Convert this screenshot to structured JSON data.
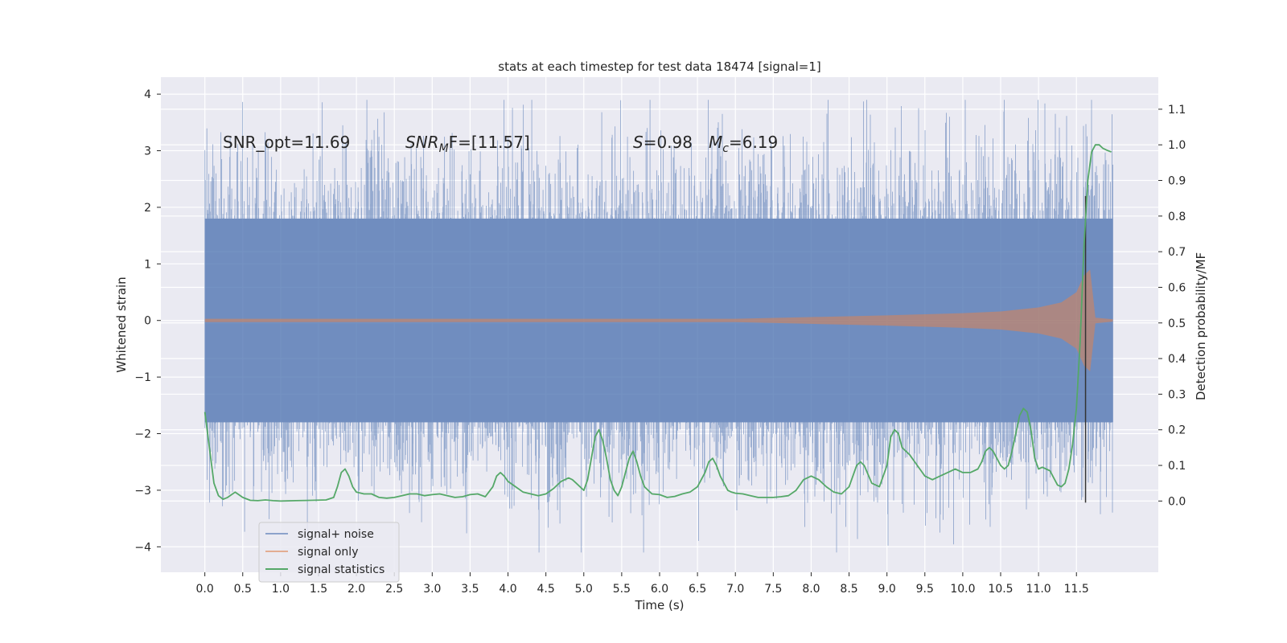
{
  "chart_data": {
    "type": "line",
    "title": "stats at each timestep for test data 18474 [signal=1]",
    "xlabel": "Time (s)",
    "ylabel": "Whitened strain",
    "ylabel_right": "Detection probability/MF",
    "xlim": [
      -0.58,
      12.58
    ],
    "ylim": [
      -4.45,
      4.3
    ],
    "ylim_right": [
      -0.2,
      1.19
    ],
    "x_ticks": [
      "0.0",
      "0.5",
      "1.0",
      "1.5",
      "2.0",
      "2.5",
      "3.0",
      "3.5",
      "4.0",
      "4.5",
      "5.0",
      "5.5",
      "6.0",
      "6.5",
      "7.0",
      "7.5",
      "8.0",
      "8.5",
      "9.0",
      "9.5",
      "10.0",
      "10.5",
      "11.0",
      "11.5"
    ],
    "y_ticks_left": [
      "−4",
      "−3",
      "−2",
      "−1",
      "0",
      "1",
      "2",
      "3",
      "4"
    ],
    "y_ticks_right": [
      "0.0",
      "0.1",
      "0.2",
      "0.3",
      "0.4",
      "0.5",
      "0.6",
      "0.7",
      "0.8",
      "0.9",
      "1.0",
      "1.1"
    ],
    "grid": true,
    "legend_position": "lower-left",
    "annotations": [
      {
        "id": "snr_opt",
        "text": "SNR_opt=11.69"
      },
      {
        "id": "snr_mf",
        "text": "SNR_MF=[11.57]",
        "base": "SNR",
        "sub": "M",
        "suffix": "F=[11.57]"
      },
      {
        "id": "s_mc",
        "text": "S=0.98   M_c=6.19",
        "s_label": "S",
        "s_value": "=0.98",
        "mc_base": "M",
        "mc_sub": "c",
        "mc_value": "=6.19"
      }
    ],
    "series": [
      {
        "name": "signal+ noise",
        "color": "#4c72b0",
        "axis": "left",
        "kind": "noise-band",
        "x_range": [
          0,
          11.98
        ],
        "typical_range": [
          -1.8,
          1.8
        ],
        "extremes_range": [
          -4.1,
          3.9
        ]
      },
      {
        "name": "signal only",
        "color": "#dd8452",
        "axis": "left",
        "kind": "chirp-envelope",
        "x": [
          0,
          7.0,
          8.0,
          9.0,
          10.0,
          10.5,
          11.0,
          11.3,
          11.5,
          11.6,
          11.68,
          11.75,
          11.98
        ],
        "amplitude": [
          0.03,
          0.03,
          0.06,
          0.09,
          0.13,
          0.16,
          0.23,
          0.32,
          0.5,
          0.8,
          0.9,
          0.05,
          0.02
        ]
      },
      {
        "name": "signal statistics",
        "color": "#55a868",
        "axis": "right",
        "x": [
          0.0,
          0.06,
          0.12,
          0.18,
          0.24,
          0.3,
          0.4,
          0.5,
          0.6,
          0.7,
          0.8,
          0.9,
          1.0,
          1.2,
          1.4,
          1.6,
          1.7,
          1.75,
          1.8,
          1.85,
          1.9,
          1.95,
          2.0,
          2.1,
          2.2,
          2.3,
          2.4,
          2.5,
          2.6,
          2.7,
          2.8,
          2.9,
          3.0,
          3.1,
          3.2,
          3.3,
          3.4,
          3.5,
          3.6,
          3.7,
          3.8,
          3.85,
          3.9,
          3.95,
          4.0,
          4.1,
          4.2,
          4.3,
          4.4,
          4.5,
          4.6,
          4.7,
          4.8,
          4.85,
          4.9,
          5.0,
          5.05,
          5.1,
          5.15,
          5.2,
          5.25,
          5.3,
          5.35,
          5.4,
          5.45,
          5.5,
          5.55,
          5.6,
          5.65,
          5.7,
          5.75,
          5.8,
          5.85,
          5.9,
          6.0,
          6.1,
          6.2,
          6.3,
          6.4,
          6.5,
          6.6,
          6.65,
          6.7,
          6.75,
          6.8,
          6.85,
          6.9,
          6.95,
          7.0,
          7.1,
          7.2,
          7.3,
          7.4,
          7.5,
          7.6,
          7.7,
          7.8,
          7.9,
          8.0,
          8.1,
          8.2,
          8.3,
          8.4,
          8.5,
          8.6,
          8.65,
          8.7,
          8.8,
          8.9,
          9.0,
          9.05,
          9.1,
          9.15,
          9.2,
          9.3,
          9.4,
          9.5,
          9.6,
          9.7,
          9.8,
          9.9,
          10.0,
          10.1,
          10.2,
          10.25,
          10.3,
          10.35,
          10.4,
          10.45,
          10.5,
          10.55,
          10.6,
          10.65,
          10.7,
          10.75,
          10.8,
          10.85,
          10.9,
          10.95,
          11.0,
          11.05,
          11.1,
          11.15,
          11.2,
          11.25,
          11.3,
          11.35,
          11.4,
          11.45,
          11.5,
          11.55,
          11.6,
          11.65,
          11.7,
          11.75,
          11.8,
          11.85,
          11.9,
          11.96
        ],
        "y": [
          0.25,
          0.15,
          0.05,
          0.015,
          0.005,
          0.01,
          0.025,
          0.01,
          0.002,
          0.001,
          0.003,
          0.001,
          0.0,
          0.001,
          0.002,
          0.003,
          0.01,
          0.04,
          0.08,
          0.09,
          0.07,
          0.04,
          0.025,
          0.02,
          0.02,
          0.01,
          0.008,
          0.01,
          0.015,
          0.02,
          0.02,
          0.015,
          0.018,
          0.02,
          0.015,
          0.01,
          0.012,
          0.018,
          0.02,
          0.012,
          0.04,
          0.07,
          0.08,
          0.07,
          0.055,
          0.04,
          0.025,
          0.02,
          0.015,
          0.02,
          0.035,
          0.055,
          0.065,
          0.06,
          0.05,
          0.03,
          0.06,
          0.12,
          0.18,
          0.2,
          0.17,
          0.12,
          0.06,
          0.03,
          0.015,
          0.04,
          0.08,
          0.12,
          0.14,
          0.11,
          0.07,
          0.04,
          0.03,
          0.02,
          0.018,
          0.01,
          0.013,
          0.02,
          0.025,
          0.04,
          0.08,
          0.11,
          0.12,
          0.1,
          0.07,
          0.05,
          0.03,
          0.025,
          0.022,
          0.02,
          0.015,
          0.01,
          0.01,
          0.01,
          0.012,
          0.015,
          0.03,
          0.06,
          0.07,
          0.06,
          0.04,
          0.025,
          0.02,
          0.04,
          0.1,
          0.11,
          0.1,
          0.05,
          0.04,
          0.1,
          0.18,
          0.2,
          0.19,
          0.15,
          0.13,
          0.1,
          0.07,
          0.06,
          0.07,
          0.08,
          0.09,
          0.08,
          0.08,
          0.09,
          0.11,
          0.14,
          0.15,
          0.14,
          0.12,
          0.1,
          0.09,
          0.1,
          0.14,
          0.19,
          0.24,
          0.26,
          0.25,
          0.2,
          0.12,
          0.09,
          0.095,
          0.09,
          0.085,
          0.065,
          0.045,
          0.04,
          0.05,
          0.09,
          0.16,
          0.26,
          0.45,
          0.72,
          0.9,
          0.98,
          1.0,
          1.0,
          0.99,
          0.985,
          0.98
        ]
      }
    ],
    "marker_line": {
      "x": 11.62,
      "y": [
        -3.22,
        2.2
      ],
      "color": "#333333"
    }
  }
}
